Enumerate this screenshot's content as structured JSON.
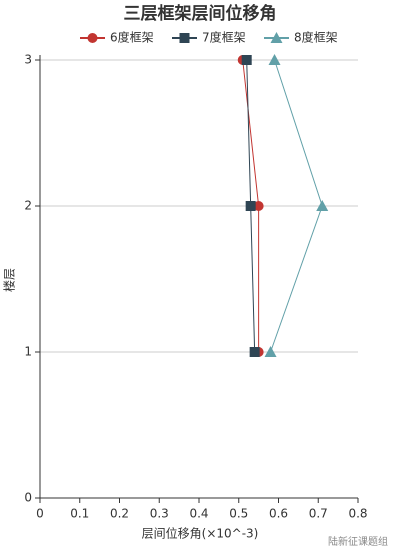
{
  "chart_data": {
    "type": "line",
    "title": "三层框架层间位移角",
    "x_label": "层间位移角(×10^-3)",
    "y_label": "楼层",
    "watermark": "陆新征课题组",
    "y": [
      1,
      2,
      3
    ],
    "series": [
      {
        "name": "6度框架",
        "color": "#c23531",
        "marker": "circle",
        "values": [
          0.55,
          0.55,
          0.51
        ]
      },
      {
        "name": "7度框架",
        "color": "#2f4554",
        "marker": "square",
        "values": [
          0.54,
          0.53,
          0.52
        ]
      },
      {
        "name": "8度框架",
        "color": "#61a0a8",
        "marker": "triangle",
        "values": [
          0.58,
          0.71,
          0.59
        ]
      }
    ],
    "xlim": [
      0,
      0.8
    ],
    "xticks": [
      0,
      0.1,
      0.2,
      0.3,
      0.4,
      0.5,
      0.6,
      0.7,
      0.8
    ],
    "ylim": [
      0,
      3
    ],
    "yticks": [
      0,
      1,
      2,
      3
    ],
    "grid": true
  }
}
